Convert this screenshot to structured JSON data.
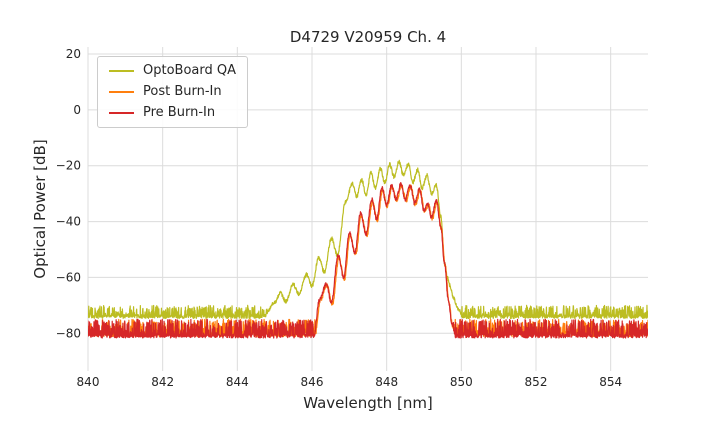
{
  "figure": {
    "title": "D4729 V20959 Ch. 4",
    "xlabel": "Wavelength [nm]",
    "ylabel": "Optical Power [dB]",
    "background": "#ffffff",
    "grid_color": "#dcdcdc",
    "text_color": "#262626"
  },
  "legend": {
    "entries": [
      {
        "label": "OptoBoard QA",
        "color": "#bcbd22"
      },
      {
        "label": "Post Burn-In",
        "color": "#ff7f0e"
      },
      {
        "label": "Pre Burn-In",
        "color": "#d62728"
      }
    ]
  },
  "chart_data": {
    "type": "line",
    "title": "D4729 V20959 Ch. 4",
    "xlabel": "Wavelength [nm]",
    "ylabel": "Optical Power [dB]",
    "xlim": [
      840,
      855
    ],
    "ylim": [
      -93.5,
      22.5
    ],
    "xticks": [
      840,
      842,
      844,
      846,
      848,
      850,
      852,
      854
    ],
    "yticks": [
      20,
      0,
      -20,
      -40,
      -60,
      -80
    ],
    "grid": true,
    "legend_position": "upper left",
    "series": [
      {
        "name": "OptoBoard QA",
        "color": "#bcbd22",
        "noise_floor_db": -74,
        "noise_amplitude_db": 4,
        "noise_spike_db": 6,
        "envelope": [
          [
            840,
            -74
          ],
          [
            844.7,
            -74
          ],
          [
            845.0,
            -69
          ],
          [
            845.15,
            -65.5
          ],
          [
            845.3,
            -68.5
          ],
          [
            845.5,
            -62.5
          ],
          [
            845.65,
            -66
          ],
          [
            845.85,
            -59
          ],
          [
            846.0,
            -63
          ],
          [
            846.18,
            -53
          ],
          [
            846.33,
            -58
          ],
          [
            846.52,
            -46
          ],
          [
            846.68,
            -52
          ],
          [
            846.9,
            -33
          ],
          [
            847.08,
            -26.5
          ],
          [
            847.2,
            -31
          ],
          [
            847.33,
            -25
          ],
          [
            847.45,
            -30.5
          ],
          [
            847.58,
            -22.5
          ],
          [
            847.7,
            -28
          ],
          [
            847.83,
            -21
          ],
          [
            847.95,
            -26
          ],
          [
            848.08,
            -19.5
          ],
          [
            848.2,
            -24
          ],
          [
            848.33,
            -18.5
          ],
          [
            848.45,
            -23.5
          ],
          [
            848.58,
            -19.5
          ],
          [
            848.7,
            -26
          ],
          [
            848.83,
            -21.5
          ],
          [
            848.95,
            -28
          ],
          [
            849.08,
            -23.5
          ],
          [
            849.2,
            -30
          ],
          [
            849.33,
            -27
          ],
          [
            849.45,
            -38
          ],
          [
            849.55,
            -55
          ],
          [
            849.63,
            -60
          ],
          [
            849.7,
            -63
          ],
          [
            849.78,
            -67
          ],
          [
            849.9,
            -71
          ],
          [
            850.05,
            -74
          ],
          [
            855,
            -74
          ]
        ]
      },
      {
        "name": "Post Burn-In",
        "color": "#ff7f0e",
        "noise_floor_db": -79.5,
        "noise_amplitude_db": 4.5,
        "noise_spike_db": 8,
        "envelope": [
          [
            840,
            -80.5
          ],
          [
            846.08,
            -80.5
          ],
          [
            846.23,
            -68
          ],
          [
            846.4,
            -63
          ],
          [
            846.55,
            -69.5
          ],
          [
            846.72,
            -53
          ],
          [
            846.87,
            -60.5
          ],
          [
            847.02,
            -45
          ],
          [
            847.17,
            -52
          ],
          [
            847.32,
            -38
          ],
          [
            847.47,
            -45
          ],
          [
            847.62,
            -33
          ],
          [
            847.75,
            -39.5
          ],
          [
            847.89,
            -29
          ],
          [
            848.02,
            -34.5
          ],
          [
            848.15,
            -27.5
          ],
          [
            848.27,
            -32.5
          ],
          [
            848.4,
            -27
          ],
          [
            848.52,
            -32.5
          ],
          [
            848.65,
            -27.5
          ],
          [
            848.77,
            -34
          ],
          [
            848.9,
            -29
          ],
          [
            849.02,
            -36.5
          ],
          [
            849.12,
            -34
          ],
          [
            849.22,
            -39
          ],
          [
            849.35,
            -33
          ],
          [
            849.47,
            -43
          ],
          [
            849.57,
            -56
          ],
          [
            849.67,
            -69
          ],
          [
            849.77,
            -78
          ],
          [
            849.87,
            -80.5
          ],
          [
            855,
            -80.5
          ]
        ]
      },
      {
        "name": "Pre Burn-In",
        "color": "#d62728",
        "noise_floor_db": -80,
        "noise_amplitude_db": 5,
        "noise_spike_db": 10,
        "envelope": [
          [
            840,
            -81
          ],
          [
            846.05,
            -81
          ],
          [
            846.2,
            -68
          ],
          [
            846.38,
            -62.5
          ],
          [
            846.52,
            -69
          ],
          [
            846.7,
            -52
          ],
          [
            846.85,
            -60
          ],
          [
            847.0,
            -44
          ],
          [
            847.15,
            -51
          ],
          [
            847.3,
            -37
          ],
          [
            847.45,
            -44.5
          ],
          [
            847.6,
            -32
          ],
          [
            847.73,
            -39
          ],
          [
            847.87,
            -28
          ],
          [
            848.0,
            -34
          ],
          [
            848.13,
            -27
          ],
          [
            848.25,
            -32
          ],
          [
            848.38,
            -26.5
          ],
          [
            848.5,
            -32
          ],
          [
            848.63,
            -27
          ],
          [
            848.75,
            -33.5
          ],
          [
            848.88,
            -28.5
          ],
          [
            849.0,
            -36
          ],
          [
            849.1,
            -33.5
          ],
          [
            849.2,
            -38.5
          ],
          [
            849.33,
            -32.5
          ],
          [
            849.45,
            -42
          ],
          [
            849.55,
            -55
          ],
          [
            849.65,
            -68
          ],
          [
            849.75,
            -77
          ],
          [
            849.85,
            -81
          ],
          [
            855,
            -81
          ]
        ]
      }
    ]
  }
}
